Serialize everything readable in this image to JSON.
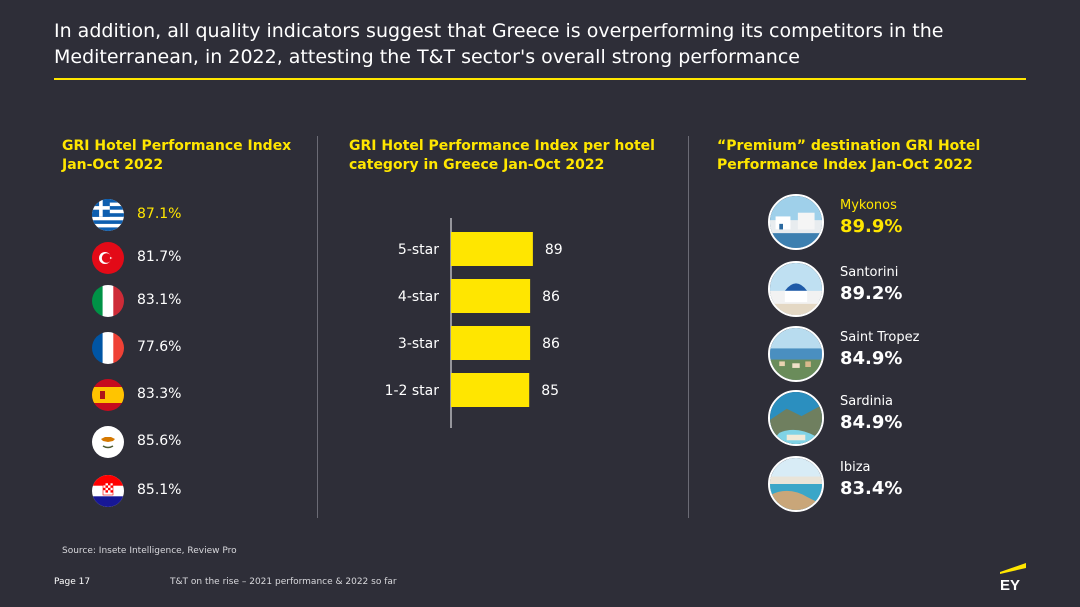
{
  "headline": "In addition, all quality indicators suggest that Greece is overperforming its competitors in the Mediterranean, in 2022, attesting the T&T sector's overall strong performance",
  "columns": {
    "left_title_line1": "GRI Hotel Performance Index",
    "left_title_line2": "Jan-Oct 2022",
    "mid_title_line1": "GRI Hotel Performance Index per hotel",
    "mid_title_line2": "category in Greece Jan-Oct 2022",
    "right_title_line1": "“Premium” destination GRI Hotel",
    "right_title_line2": "Performance Index Jan-Oct 2022"
  },
  "countries": [
    {
      "flag": "greece-flag-icon",
      "value": "87.1%",
      "highlight": true
    },
    {
      "flag": "turkey-flag-icon",
      "value": "81.7%",
      "highlight": false
    },
    {
      "flag": "italy-flag-icon",
      "value": "83.1%",
      "highlight": false
    },
    {
      "flag": "france-flag-icon",
      "value": "77.6%",
      "highlight": false
    },
    {
      "flag": "spain-flag-icon",
      "value": "83.3%",
      "highlight": false
    },
    {
      "flag": "cyprus-flag-icon",
      "value": "85.6%",
      "highlight": false
    },
    {
      "flag": "croatia-flag-icon",
      "value": "85.1%",
      "highlight": false
    }
  ],
  "chart_data": {
    "type": "bar",
    "orientation": "horizontal",
    "categories": [
      "5-star",
      "4-star",
      "3-star",
      "1-2 star"
    ],
    "values": [
      89,
      86,
      86,
      85
    ],
    "value_labels": [
      "89",
      "86",
      "86",
      "85"
    ],
    "xlim": [
      0,
      100
    ],
    "bar_color": "#ffe600",
    "grid": false,
    "legend": "none"
  },
  "destinations": [
    {
      "name": "Mykonos",
      "value": "89.9%",
      "highlight": true,
      "icon": "mykonos-photo-icon"
    },
    {
      "name": "Santorini",
      "value": "89.2%",
      "highlight": false,
      "icon": "santorini-photo-icon"
    },
    {
      "name": "Saint Tropez",
      "value": "84.9%",
      "highlight": false,
      "icon": "saint-tropez-photo-icon"
    },
    {
      "name": "Sardinia",
      "value": "84.9%",
      "highlight": false,
      "icon": "sardinia-photo-icon"
    },
    {
      "name": "Ibiza",
      "value": "83.4%",
      "highlight": false,
      "icon": "ibiza-photo-icon"
    }
  ],
  "footer": {
    "source": "Source: Insete Intelligence, Review Pro",
    "page": "Page 17",
    "title": "T&T on the rise – 2021 performance & 2022 so far",
    "logo_text": "EY"
  },
  "colors": {
    "background": "#2e2e38",
    "accent": "#ffe600",
    "text": "#ffffff"
  }
}
